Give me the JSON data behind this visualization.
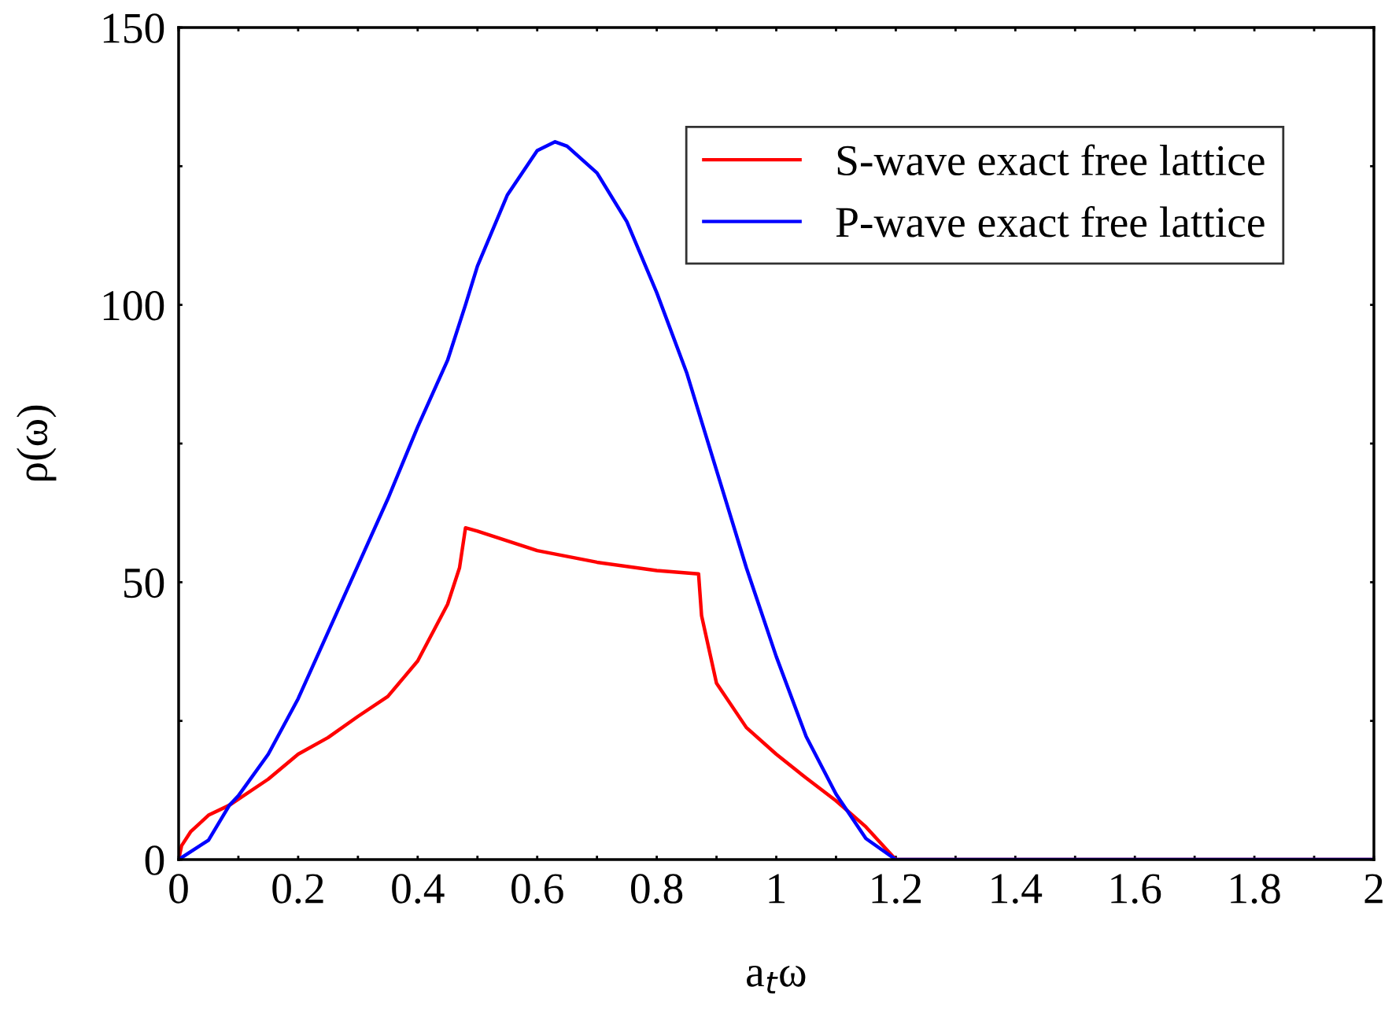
{
  "chart_data": {
    "type": "line",
    "xlabel": "a$_{t}$ω",
    "ylabel": "ρ(ω)",
    "xlim": [
      0,
      2
    ],
    "ylim": [
      0,
      150
    ],
    "xticks": [
      0,
      {
        "value": 0.1,
        "label": null
      },
      0.2,
      {
        "value": 0.3,
        "label": null
      },
      0.4,
      {
        "value": 0.5,
        "label": null
      },
      0.6,
      {
        "value": 0.7,
        "label": null
      },
      0.8,
      {
        "value": 0.9,
        "label": null
      },
      1,
      {
        "value": 1.1,
        "label": null
      },
      1.2,
      {
        "value": 1.3,
        "label": null
      },
      1.4,
      {
        "value": 1.5,
        "label": null
      },
      1.6,
      {
        "value": 1.7,
        "label": null
      },
      1.8,
      {
        "value": 1.9,
        "label": null
      },
      2
    ],
    "yticks": [
      0,
      {
        "value": 25,
        "label": null
      },
      50,
      {
        "value": 75,
        "label": null
      },
      100,
      {
        "value": 125,
        "label": null
      },
      150
    ],
    "grid": false,
    "legend": "top right",
    "marker": "none",
    "line_style": "solid",
    "series": [
      {
        "name": "S-wave exact free lattice",
        "color": "#ff0000",
        "x": [
          0,
          0.005,
          0.02,
          0.05,
          0.085,
          0.15,
          0.2,
          0.25,
          0.3,
          0.35,
          0.4,
          0.45,
          0.47,
          0.48,
          0.5,
          0.6,
          0.7,
          0.8,
          0.87,
          0.875,
          0.9,
          0.95,
          1.0,
          1.05,
          1.1,
          1.15,
          1.2,
          2
        ],
        "values": [
          0,
          2.5,
          5,
          8,
          9.8,
          14.5,
          19,
          22,
          25.8,
          29.4,
          35.8,
          46,
          52.6,
          59.8,
          59.2,
          55.7,
          53.6,
          52.1,
          51.5,
          44,
          31.8,
          23.8,
          19,
          14.7,
          10.6,
          5.9,
          0,
          0
        ]
      },
      {
        "name": "P-wave exact free lattice",
        "color": "#0000ff",
        "x": [
          0,
          0.05,
          0.085,
          0.1,
          0.15,
          0.2,
          0.25,
          0.3,
          0.35,
          0.4,
          0.45,
          0.48,
          0.5,
          0.55,
          0.6,
          0.63,
          0.65,
          0.7,
          0.75,
          0.8,
          0.85,
          0.9,
          0.95,
          1.0,
          1.05,
          1.1,
          1.15,
          1.2,
          2
        ],
        "values": [
          0,
          3.5,
          9.8,
          11.5,
          19,
          29,
          41,
          53,
          65,
          78,
          90,
          100,
          107,
          119.8,
          127.8,
          129.4,
          128.6,
          123.8,
          115,
          102.2,
          87.8,
          70.2,
          52.6,
          36.6,
          22.2,
          11.8,
          3.8,
          0,
          0
        ]
      }
    ]
  }
}
